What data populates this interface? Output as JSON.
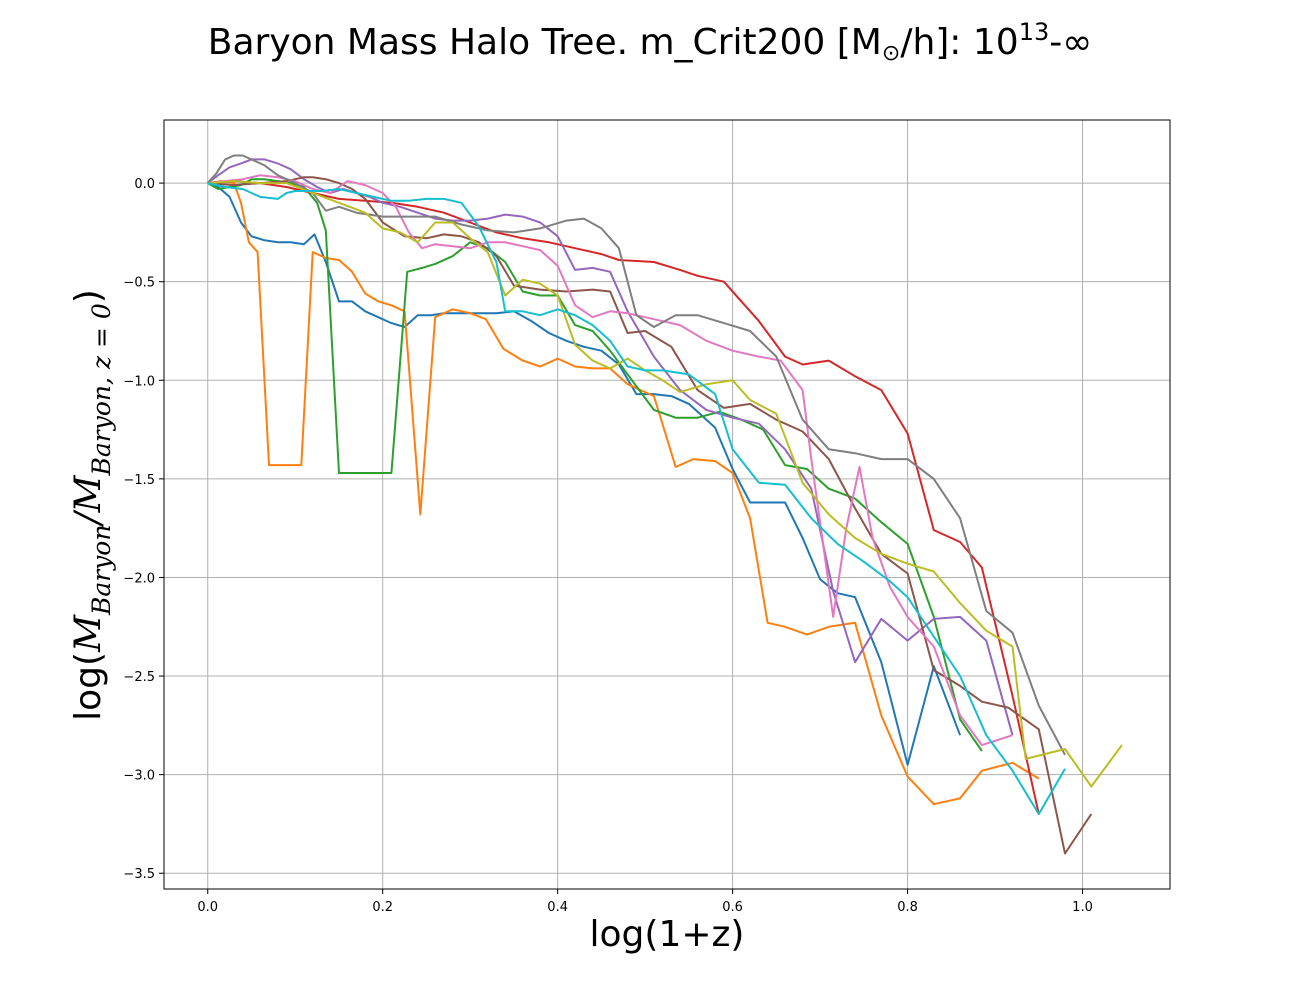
{
  "chart_data": {
    "type": "line",
    "title": "Baryon Mass  Halo Tree. m_Crit200 [M⊙/h]: 10¹³-∞",
    "title_parts": {
      "main": "Baryon Mass  Halo Tree. m_Crit200 [M",
      "odot": "⊙",
      "mid": "/h]: 10",
      "sup": "13",
      "tail": "-∞"
    },
    "xlabel": "log(1+z)",
    "ylabel": "log(M_Baryon/M_Baryon,z=0)",
    "ylabel_parts": {
      "log_open": "log(",
      "m1": "M",
      "sub1": "Baryon",
      "slash": "/",
      "m2": "M",
      "sub2": "Baryon, z = 0",
      "close": ")"
    },
    "xlim": [
      -0.05,
      1.1
    ],
    "ylim": [
      -3.58,
      0.32
    ],
    "grid": true,
    "x_ticks": [
      0.0,
      0.2,
      0.4,
      0.6,
      0.8,
      1.0
    ],
    "x_tick_labels": [
      "0.0",
      "0.2",
      "0.4",
      "0.6",
      "0.8",
      "1.0"
    ],
    "y_ticks": [
      0.0,
      -0.5,
      -1.0,
      -1.5,
      -2.0,
      -2.5,
      -3.0,
      -3.5
    ],
    "y_tick_labels": [
      "0.0",
      "−0.5",
      "−1.0",
      "−1.5",
      "−2.0",
      "−2.5",
      "−3.0",
      "−3.5"
    ],
    "series": [
      {
        "color": "#1f77b4",
        "x": [
          0.0,
          0.012,
          0.025,
          0.038,
          0.05,
          0.065,
          0.08,
          0.095,
          0.11,
          0.122,
          0.135,
          0.15,
          0.165,
          0.18,
          0.195,
          0.21,
          0.225,
          0.24,
          0.255,
          0.27,
          0.29,
          0.31,
          0.33,
          0.35,
          0.37,
          0.39,
          0.41,
          0.43,
          0.45,
          0.47,
          0.49,
          0.51,
          0.53,
          0.55,
          0.58,
          0.6,
          0.62,
          0.64,
          0.66,
          0.68,
          0.7,
          0.72,
          0.74,
          0.77,
          0.8,
          0.83,
          0.86
        ],
        "y": [
          0.0,
          -0.02,
          -0.07,
          -0.2,
          -0.27,
          -0.29,
          -0.3,
          -0.3,
          -0.31,
          -0.26,
          -0.4,
          -0.6,
          -0.6,
          -0.65,
          -0.68,
          -0.71,
          -0.73,
          -0.67,
          -0.67,
          -0.66,
          -0.66,
          -0.66,
          -0.66,
          -0.65,
          -0.7,
          -0.76,
          -0.8,
          -0.83,
          -0.85,
          -0.92,
          -1.07,
          -1.07,
          -1.08,
          -1.12,
          -1.24,
          -1.45,
          -1.62,
          -1.62,
          -1.62,
          -1.8,
          -2.01,
          -2.08,
          -2.1,
          -2.43,
          -2.95,
          -2.45,
          -2.8
        ]
      },
      {
        "color": "#ff7f0e",
        "x": [
          0.0,
          0.015,
          0.03,
          0.038,
          0.047,
          0.057,
          0.07,
          0.085,
          0.107,
          0.12,
          0.135,
          0.15,
          0.165,
          0.18,
          0.195,
          0.21,
          0.225,
          0.243,
          0.26,
          0.28,
          0.3,
          0.318,
          0.338,
          0.36,
          0.38,
          0.4,
          0.42,
          0.44,
          0.46,
          0.48,
          0.51,
          0.535,
          0.555,
          0.58,
          0.6,
          0.62,
          0.64,
          0.66,
          0.685,
          0.71,
          0.74,
          0.77,
          0.8,
          0.83,
          0.86,
          0.885,
          0.92,
          0.95
        ],
        "y": [
          0.0,
          0.01,
          0.0,
          -0.1,
          -0.3,
          -0.35,
          -1.43,
          -1.43,
          -1.43,
          -0.35,
          -0.38,
          -0.39,
          -0.45,
          -0.56,
          -0.6,
          -0.62,
          -0.65,
          -1.68,
          -0.68,
          -0.64,
          -0.66,
          -0.69,
          -0.84,
          -0.9,
          -0.93,
          -0.89,
          -0.93,
          -0.94,
          -0.94,
          -1.02,
          -1.08,
          -1.44,
          -1.4,
          -1.41,
          -1.47,
          -1.7,
          -2.23,
          -2.25,
          -2.29,
          -2.25,
          -2.23,
          -2.7,
          -3.01,
          -3.15,
          -3.12,
          -2.98,
          -2.94,
          -3.02
        ]
      },
      {
        "color": "#2ca02c",
        "x": [
          0.0,
          0.012,
          0.025,
          0.038,
          0.05,
          0.065,
          0.08,
          0.095,
          0.11,
          0.125,
          0.135,
          0.15,
          0.165,
          0.18,
          0.195,
          0.21,
          0.228,
          0.245,
          0.26,
          0.28,
          0.3,
          0.32,
          0.34,
          0.36,
          0.38,
          0.4,
          0.42,
          0.44,
          0.46,
          0.48,
          0.51,
          0.535,
          0.56,
          0.585,
          0.61,
          0.635,
          0.66,
          0.685,
          0.71,
          0.74,
          0.77,
          0.8,
          0.83,
          0.86,
          0.885
        ],
        "y": [
          0.0,
          -0.03,
          -0.02,
          -0.01,
          0.02,
          0.02,
          0.01,
          0.0,
          -0.02,
          -0.1,
          -0.24,
          -1.47,
          -1.47,
          -1.47,
          -1.47,
          -1.47,
          -0.45,
          -0.43,
          -0.41,
          -0.37,
          -0.3,
          -0.33,
          -0.4,
          -0.55,
          -0.57,
          -0.57,
          -0.72,
          -0.75,
          -0.85,
          -0.97,
          -1.15,
          -1.19,
          -1.19,
          -1.16,
          -1.2,
          -1.25,
          -1.43,
          -1.45,
          -1.55,
          -1.6,
          -1.72,
          -1.83,
          -2.2,
          -2.72,
          -2.88
        ]
      },
      {
        "color": "#d62728",
        "x": [
          0.0,
          0.03,
          0.06,
          0.09,
          0.12,
          0.15,
          0.18,
          0.21,
          0.24,
          0.27,
          0.3,
          0.33,
          0.36,
          0.39,
          0.42,
          0.45,
          0.47,
          0.51,
          0.54,
          0.56,
          0.59,
          0.61,
          0.63,
          0.66,
          0.68,
          0.71,
          0.74,
          0.77,
          0.8,
          0.83,
          0.86,
          0.885,
          0.92,
          0.95
        ],
        "y": [
          0.0,
          0.01,
          0.0,
          -0.02,
          -0.05,
          -0.08,
          -0.09,
          -0.1,
          -0.12,
          -0.15,
          -0.2,
          -0.25,
          -0.28,
          -0.3,
          -0.33,
          -0.36,
          -0.39,
          -0.4,
          -0.44,
          -0.47,
          -0.5,
          -0.6,
          -0.7,
          -0.88,
          -0.92,
          -0.9,
          -0.98,
          -1.05,
          -1.27,
          -1.76,
          -1.82,
          -1.95,
          -2.6,
          -3.2
        ]
      },
      {
        "color": "#9467bd",
        "x": [
          0.0,
          0.012,
          0.025,
          0.038,
          0.05,
          0.065,
          0.08,
          0.095,
          0.11,
          0.125,
          0.14,
          0.155,
          0.17,
          0.185,
          0.2,
          0.22,
          0.24,
          0.26,
          0.28,
          0.3,
          0.32,
          0.34,
          0.36,
          0.38,
          0.4,
          0.42,
          0.44,
          0.46,
          0.48,
          0.51,
          0.54,
          0.57,
          0.6,
          0.63,
          0.66,
          0.69,
          0.715,
          0.74,
          0.77,
          0.8,
          0.83,
          0.86,
          0.89,
          0.92
        ],
        "y": [
          0.0,
          0.04,
          0.08,
          0.1,
          0.12,
          0.12,
          0.1,
          0.07,
          0.02,
          -0.02,
          -0.05,
          -0.03,
          -0.05,
          -0.07,
          -0.1,
          -0.12,
          -0.15,
          -0.18,
          -0.19,
          -0.19,
          -0.18,
          -0.16,
          -0.17,
          -0.2,
          -0.27,
          -0.44,
          -0.43,
          -0.45,
          -0.65,
          -0.88,
          -1.05,
          -1.15,
          -1.19,
          -1.22,
          -1.35,
          -1.55,
          -2.07,
          -2.43,
          -2.21,
          -2.32,
          -2.21,
          -2.2,
          -2.32,
          -2.8
        ]
      },
      {
        "color": "#8c564b",
        "x": [
          0.0,
          0.03,
          0.06,
          0.09,
          0.11,
          0.12,
          0.135,
          0.15,
          0.165,
          0.18,
          0.2,
          0.225,
          0.25,
          0.27,
          0.29,
          0.31,
          0.33,
          0.35,
          0.38,
          0.41,
          0.44,
          0.46,
          0.48,
          0.5,
          0.53,
          0.56,
          0.59,
          0.62,
          0.65,
          0.68,
          0.71,
          0.74,
          0.77,
          0.8,
          0.83,
          0.86,
          0.885,
          0.915,
          0.95,
          0.98,
          1.01
        ],
        "y": [
          0.0,
          -0.01,
          0.0,
          0.01,
          0.03,
          0.03,
          0.02,
          0.0,
          -0.03,
          -0.08,
          -0.2,
          -0.27,
          -0.28,
          -0.26,
          -0.27,
          -0.3,
          -0.37,
          -0.52,
          -0.54,
          -0.55,
          -0.54,
          -0.55,
          -0.76,
          -0.75,
          -0.83,
          -1.05,
          -1.14,
          -1.12,
          -1.2,
          -1.26,
          -1.4,
          -1.65,
          -1.88,
          -1.98,
          -2.47,
          -2.55,
          -2.63,
          -2.66,
          -2.77,
          -3.4,
          -3.2
        ]
      },
      {
        "color": "#e377c2",
        "x": [
          0.0,
          0.02,
          0.04,
          0.06,
          0.08,
          0.1,
          0.12,
          0.14,
          0.16,
          0.18,
          0.2,
          0.215,
          0.23,
          0.245,
          0.26,
          0.28,
          0.3,
          0.32,
          0.34,
          0.36,
          0.38,
          0.4,
          0.42,
          0.44,
          0.46,
          0.48,
          0.51,
          0.54,
          0.57,
          0.6,
          0.63,
          0.655,
          0.68,
          0.69,
          0.715,
          0.73,
          0.745,
          0.76,
          0.78,
          0.8,
          0.83,
          0.86,
          0.885,
          0.92
        ],
        "y": [
          0.0,
          0.01,
          0.02,
          0.04,
          0.03,
          0.01,
          -0.03,
          -0.05,
          0.01,
          -0.01,
          -0.05,
          -0.12,
          -0.25,
          -0.33,
          -0.31,
          -0.32,
          -0.33,
          -0.3,
          -0.3,
          -0.32,
          -0.34,
          -0.42,
          -0.62,
          -0.68,
          -0.65,
          -0.66,
          -0.69,
          -0.72,
          -0.8,
          -0.85,
          -0.88,
          -0.9,
          -1.05,
          -1.4,
          -2.2,
          -1.75,
          -1.44,
          -1.8,
          -2.05,
          -2.2,
          -2.35,
          -2.7,
          -2.85,
          -2.8
        ]
      },
      {
        "color": "#7f7f7f",
        "x": [
          0.0,
          0.01,
          0.02,
          0.03,
          0.04,
          0.05,
          0.065,
          0.08,
          0.1,
          0.12,
          0.135,
          0.15,
          0.17,
          0.2,
          0.23,
          0.26,
          0.29,
          0.32,
          0.35,
          0.38,
          0.41,
          0.43,
          0.45,
          0.47,
          0.49,
          0.51,
          0.535,
          0.56,
          0.59,
          0.62,
          0.65,
          0.68,
          0.71,
          0.74,
          0.77,
          0.8,
          0.83,
          0.86,
          0.89,
          0.92,
          0.95,
          0.98
        ],
        "y": [
          0.0,
          0.05,
          0.12,
          0.14,
          0.14,
          0.12,
          0.09,
          0.04,
          0.0,
          -0.05,
          -0.14,
          -0.12,
          -0.15,
          -0.17,
          -0.17,
          -0.17,
          -0.21,
          -0.24,
          -0.25,
          -0.23,
          -0.19,
          -0.18,
          -0.23,
          -0.33,
          -0.67,
          -0.73,
          -0.67,
          -0.67,
          -0.71,
          -0.75,
          -0.88,
          -1.2,
          -1.35,
          -1.37,
          -1.4,
          -1.4,
          -1.5,
          -1.7,
          -2.17,
          -2.28,
          -2.65,
          -2.9
        ]
      },
      {
        "color": "#bcbd22",
        "x": [
          0.0,
          0.03,
          0.06,
          0.09,
          0.12,
          0.15,
          0.18,
          0.2,
          0.22,
          0.24,
          0.26,
          0.28,
          0.3,
          0.32,
          0.34,
          0.36,
          0.38,
          0.4,
          0.42,
          0.44,
          0.46,
          0.48,
          0.5,
          0.52,
          0.54,
          0.57,
          0.6,
          0.62,
          0.65,
          0.68,
          0.71,
          0.74,
          0.77,
          0.8,
          0.83,
          0.86,
          0.89,
          0.92,
          0.935,
          0.98,
          1.01,
          1.045
        ],
        "y": [
          0.0,
          0.01,
          0.0,
          0.0,
          -0.05,
          -0.1,
          -0.15,
          -0.23,
          -0.25,
          -0.3,
          -0.2,
          -0.2,
          -0.28,
          -0.35,
          -0.57,
          -0.49,
          -0.51,
          -0.57,
          -0.82,
          -0.9,
          -0.94,
          -0.89,
          -0.95,
          -1.0,
          -1.06,
          -1.02,
          -1.0,
          -1.1,
          -1.17,
          -1.52,
          -1.68,
          -1.8,
          -1.88,
          -1.93,
          -1.97,
          -2.13,
          -2.27,
          -2.35,
          -2.92,
          -2.87,
          -3.06,
          -2.85
        ]
      },
      {
        "color": "#17becf",
        "x": [
          0.0,
          0.02,
          0.04,
          0.06,
          0.08,
          0.09,
          0.1,
          0.115,
          0.13,
          0.15,
          0.17,
          0.19,
          0.21,
          0.23,
          0.25,
          0.27,
          0.29,
          0.31,
          0.33,
          0.34,
          0.36,
          0.38,
          0.4,
          0.42,
          0.44,
          0.46,
          0.48,
          0.5,
          0.52,
          0.55,
          0.58,
          0.6,
          0.63,
          0.66,
          0.69,
          0.72,
          0.75,
          0.78,
          0.8,
          0.83,
          0.86,
          0.89,
          0.92,
          0.95,
          0.98
        ],
        "y": [
          0.0,
          -0.02,
          -0.03,
          -0.07,
          -0.08,
          -0.05,
          -0.04,
          -0.04,
          -0.04,
          -0.03,
          -0.05,
          -0.07,
          -0.09,
          -0.09,
          -0.08,
          -0.08,
          -0.1,
          -0.22,
          -0.4,
          -0.65,
          -0.65,
          -0.67,
          -0.64,
          -0.67,
          -0.72,
          -0.8,
          -0.93,
          -0.95,
          -0.95,
          -0.97,
          -1.07,
          -1.35,
          -1.52,
          -1.53,
          -1.7,
          -1.83,
          -1.92,
          -2.02,
          -2.1,
          -2.3,
          -2.5,
          -2.8,
          -2.98,
          -3.2,
          -2.97
        ]
      }
    ]
  }
}
